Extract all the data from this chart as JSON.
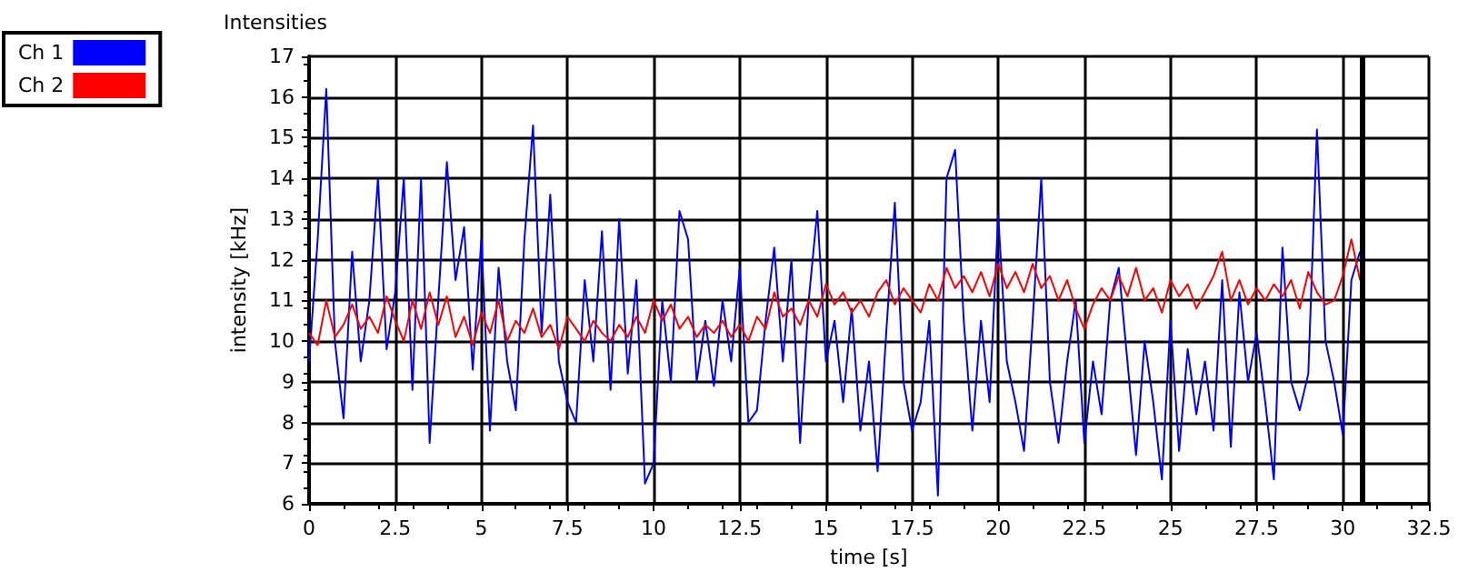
{
  "chart_data": {
    "type": "line",
    "title": "Intensities",
    "xlabel": "time [s]",
    "ylabel": "intensity [kHz]",
    "xlim": [
      0,
      32.5
    ],
    "xticks": [
      0,
      2.5,
      5,
      7.5,
      10,
      12.5,
      15,
      17.5,
      20,
      22.5,
      25,
      27.5,
      30,
      32.5
    ],
    "ylim": [
      6,
      17
    ],
    "yticks": [
      6,
      7,
      8,
      9,
      10,
      11,
      12,
      13,
      14,
      15,
      16,
      17
    ],
    "grid": true,
    "legend": "top left",
    "marker": "none",
    "line_style": "solid",
    "ref_lines": [
      {
        "axis": "x",
        "value": 30.55,
        "label": null,
        "color": "#000000"
      }
    ],
    "series": [
      {
        "name": "Ch 1",
        "color": "#0000ff",
        "x": [
          0,
          0.25,
          0.5,
          0.75,
          1,
          1.25,
          1.5,
          1.75,
          2,
          2.25,
          2.5,
          2.75,
          3,
          3.25,
          3.5,
          3.75,
          4,
          4.25,
          4.5,
          4.75,
          5,
          5.25,
          5.5,
          5.75,
          6,
          6.25,
          6.5,
          6.75,
          7,
          7.25,
          7.5,
          7.75,
          8,
          8.25,
          8.5,
          8.75,
          9,
          9.25,
          9.5,
          9.75,
          10,
          10.25,
          10.5,
          10.75,
          11,
          11.25,
          11.5,
          11.75,
          12,
          12.25,
          12.5,
          12.75,
          13,
          13.25,
          13.5,
          13.75,
          14,
          14.25,
          14.5,
          14.75,
          15,
          15.25,
          15.5,
          15.75,
          16,
          16.25,
          16.5,
          16.75,
          17,
          17.25,
          17.5,
          17.75,
          18,
          18.25,
          18.5,
          18.75,
          19,
          19.25,
          19.5,
          19.75,
          20,
          20.25,
          20.5,
          20.75,
          21,
          21.25,
          21.5,
          21.75,
          22,
          22.25,
          22.5,
          22.75,
          23,
          23.25,
          23.5,
          23.75,
          24,
          24.25,
          24.5,
          24.75,
          25,
          25.25,
          25.5,
          25.75,
          26,
          26.25,
          26.5,
          26.75,
          27,
          27.25,
          27.5,
          27.75,
          28,
          28.25,
          28.5,
          28.75,
          29,
          29.25,
          29.5,
          29.75,
          30,
          30.25,
          30.5
        ],
        "values": [
          9.5,
          12.5,
          16.2,
          10.0,
          8.1,
          12.2,
          9.5,
          11.0,
          14.0,
          9.8,
          11.2,
          14.0,
          8.8,
          14.0,
          7.5,
          11.0,
          14.4,
          11.5,
          12.8,
          9.3,
          12.5,
          7.8,
          11.8,
          9.5,
          8.3,
          12.5,
          15.3,
          10.2,
          13.6,
          9.5,
          8.5,
          8.0,
          11.5,
          9.5,
          12.7,
          8.8,
          13.0,
          9.2,
          11.5,
          6.5,
          7.0,
          11.0,
          9.0,
          13.2,
          12.5,
          9.0,
          10.5,
          8.9,
          11.0,
          9.5,
          11.8,
          8.0,
          8.3,
          10.5,
          12.3,
          9.5,
          12.0,
          7.5,
          11.0,
          13.2,
          9.5,
          10.5,
          8.5,
          10.8,
          7.8,
          9.5,
          6.8,
          10.2,
          13.4,
          9.0,
          7.8,
          8.5,
          10.5,
          6.2,
          14.0,
          14.7,
          10.5,
          7.8,
          10.5,
          8.5,
          13.1,
          9.5,
          8.5,
          7.3,
          10.5,
          14.0,
          9.0,
          7.5,
          9.5,
          11.0,
          7.5,
          9.5,
          8.2,
          11.0,
          11.8,
          9.5,
          7.2,
          10.0,
          8.5,
          6.6,
          10.5,
          7.3,
          9.8,
          8.2,
          9.5,
          7.8,
          11.5,
          7.4,
          11.2,
          9.0,
          10.2,
          8.5,
          6.6,
          12.3,
          9.0,
          8.3,
          9.2,
          15.2,
          10.0,
          9.0,
          7.7,
          11.5,
          12.2
        ]
      },
      {
        "name": "Ch 2",
        "color": "#ff0000",
        "x": [
          0,
          0.25,
          0.5,
          0.75,
          1,
          1.25,
          1.5,
          1.75,
          2,
          2.25,
          2.5,
          2.75,
          3,
          3.25,
          3.5,
          3.75,
          4,
          4.25,
          4.5,
          4.75,
          5,
          5.25,
          5.5,
          5.75,
          6,
          6.25,
          6.5,
          6.75,
          7,
          7.25,
          7.5,
          7.75,
          8,
          8.25,
          8.5,
          8.75,
          9,
          9.25,
          9.5,
          9.75,
          10,
          10.25,
          10.5,
          10.75,
          11,
          11.25,
          11.5,
          11.75,
          12,
          12.25,
          12.5,
          12.75,
          13,
          13.25,
          13.5,
          13.75,
          14,
          14.25,
          14.5,
          14.75,
          15,
          15.25,
          15.5,
          15.75,
          16,
          16.25,
          16.5,
          16.75,
          17,
          17.25,
          17.5,
          17.75,
          18,
          18.25,
          18.5,
          18.75,
          19,
          19.25,
          19.5,
          19.75,
          20,
          20.25,
          20.5,
          20.75,
          21,
          21.25,
          21.5,
          21.75,
          22,
          22.25,
          22.5,
          22.75,
          23,
          23.25,
          23.5,
          23.75,
          24,
          24.25,
          24.5,
          24.75,
          25,
          25.25,
          25.5,
          25.75,
          26,
          26.25,
          26.5,
          26.75,
          27,
          27.25,
          27.5,
          27.75,
          28,
          28.25,
          28.5,
          28.75,
          29,
          29.25,
          29.5,
          29.75,
          30,
          30.25,
          30.5
        ],
        "values": [
          10.2,
          9.9,
          11.0,
          10.1,
          10.4,
          10.9,
          10.3,
          10.6,
          10.2,
          11.1,
          10.5,
          10.0,
          11.0,
          10.3,
          11.2,
          10.4,
          11.1,
          10.1,
          10.6,
          9.9,
          10.7,
          10.2,
          11.0,
          10.0,
          10.5,
          10.2,
          10.8,
          10.1,
          10.4,
          9.8,
          10.6,
          10.3,
          10.0,
          10.5,
          10.2,
          10.0,
          10.4,
          10.1,
          10.6,
          10.2,
          11.0,
          10.5,
          10.9,
          10.3,
          10.6,
          10.1,
          10.4,
          10.2,
          10.5,
          10.1,
          10.4,
          10.0,
          10.6,
          10.3,
          11.2,
          10.6,
          10.8,
          10.4,
          11.0,
          10.6,
          11.4,
          10.9,
          11.2,
          10.7,
          11.0,
          10.6,
          11.2,
          11.5,
          10.9,
          11.3,
          11.0,
          10.7,
          11.4,
          11.0,
          11.8,
          11.3,
          11.6,
          11.2,
          11.7,
          11.1,
          11.9,
          11.3,
          11.7,
          11.2,
          11.9,
          11.3,
          11.6,
          11.0,
          11.5,
          10.8,
          10.3,
          10.9,
          11.3,
          11.0,
          11.6,
          11.1,
          11.8,
          11.0,
          11.3,
          10.7,
          11.5,
          11.1,
          11.4,
          10.8,
          11.2,
          11.6,
          12.2,
          11.0,
          11.5,
          10.9,
          11.3,
          11.0,
          11.4,
          11.1,
          11.5,
          10.8,
          11.7,
          11.2,
          10.9,
          11.0,
          11.6,
          12.5,
          11.5
        ]
      }
    ]
  }
}
